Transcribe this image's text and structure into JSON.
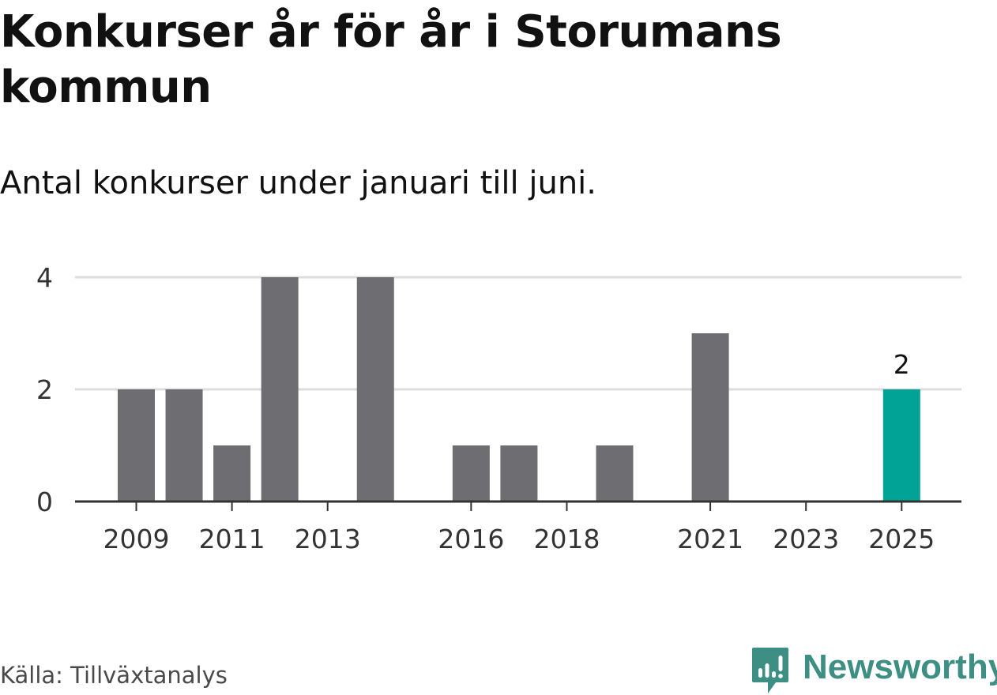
{
  "header": {
    "title": "Konkurser år för år i Storumans kommun",
    "subtitle": "Antal konkurser under januari till juni."
  },
  "footer": {
    "source": "Källa: Tillväxtanalys",
    "brand": "Newsworthy"
  },
  "colors": {
    "bar": "#6e6d72",
    "highlight": "#00a396",
    "grid": "#dddddd",
    "axis": "#333333",
    "brand": "#3d8e83"
  },
  "icons": {
    "brand_logo": "newsworthy-logo-icon"
  },
  "chart_data": {
    "type": "bar",
    "title": "Konkurser år för år i Storumans kommun",
    "subtitle": "Antal konkurser under januari till juni.",
    "xlabel": "",
    "ylabel": "",
    "categories": [
      "2009",
      "2010",
      "2011",
      "2012",
      "2013",
      "2014",
      "2015",
      "2016",
      "2017",
      "2018",
      "2019",
      "2020",
      "2021",
      "2022",
      "2023",
      "2024",
      "2025"
    ],
    "values": [
      2,
      2,
      1,
      4,
      0,
      4,
      0,
      1,
      1,
      0,
      1,
      0,
      3,
      0,
      0,
      0,
      2
    ],
    "highlight_category": "2025",
    "data_labels": [
      {
        "category": "2025",
        "text": "2"
      }
    ],
    "x_tick_labels": [
      "2009",
      "2011",
      "2013",
      "2016",
      "2018",
      "2021",
      "2023",
      "2025"
    ],
    "y_ticks": [
      0,
      2,
      4
    ],
    "ylim": [
      0,
      4
    ],
    "grid": true,
    "legend": "none"
  }
}
